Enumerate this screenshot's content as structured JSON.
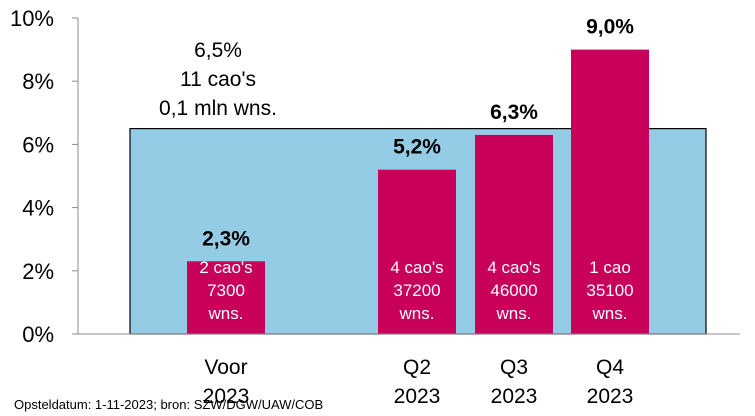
{
  "chart_data": {
    "type": "bar",
    "categories": [
      {
        "key": "voor",
        "lines": [
          "Voor",
          "2023"
        ]
      },
      {
        "key": "q2",
        "lines": [
          "Q2",
          "2023"
        ]
      },
      {
        "key": "q3",
        "lines": [
          "Q3",
          "2023"
        ]
      },
      {
        "key": "q4",
        "lines": [
          "Q4",
          "2023"
        ]
      }
    ],
    "values": [
      2.3,
      5.2,
      6.3,
      9.0
    ],
    "value_labels": [
      "2,3%",
      "5,2%",
      "6,3%",
      "9,0%"
    ],
    "bar_notes": [
      [
        "2 cao's",
        "7300",
        "wns."
      ],
      [
        "4 cao's",
        "37200",
        "wns."
      ],
      [
        "4 cao's",
        "46000",
        "wns."
      ],
      [
        "1 cao",
        "35100",
        "wns."
      ]
    ],
    "reference_area": {
      "value": 6.5,
      "note_lines": [
        "6,5%",
        "11 cao's",
        "0,1 mln wns."
      ]
    },
    "ylim": [
      0,
      10
    ],
    "y_ticks": [
      0,
      2,
      4,
      6,
      8,
      10
    ],
    "y_tick_labels": [
      "0%",
      "2%",
      "4%",
      "6%",
      "8%",
      "10%"
    ],
    "grid": false,
    "legend": "none",
    "title": "",
    "xlabel": "",
    "ylabel": "",
    "source": "Opsteldatum: 1-11-2023; bron: SZW/DGW/UAW/COB",
    "colors": {
      "bar": "#C8005A",
      "reference_fill": "#95CCE5",
      "reference_border": "#000000",
      "axis": "#8C8C8C"
    }
  }
}
